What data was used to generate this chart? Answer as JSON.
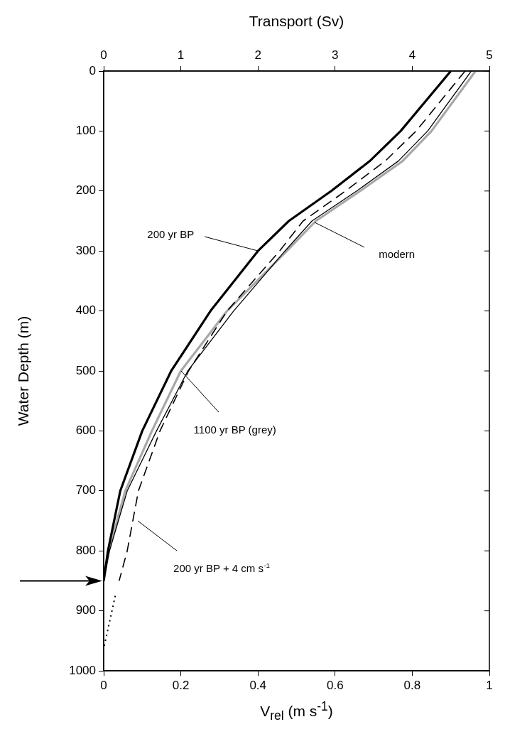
{
  "chart_data": {
    "type": "line",
    "xlabel": "V$_{rel}$ (m s$^{-1}$)",
    "ylabel": "Water Depth (m)",
    "x2label": "Transport (Sv)",
    "xlim": [
      0,
      1
    ],
    "xticks": [
      0,
      0.2,
      0.4,
      0.6,
      0.8,
      1
    ],
    "x2lim": [
      0,
      5
    ],
    "x2ticks": [
      0,
      1,
      2,
      3,
      4,
      5
    ],
    "ylim": [
      1000,
      0
    ],
    "yticks": [
      0,
      100,
      200,
      300,
      400,
      500,
      600,
      700,
      800,
      900,
      1000
    ],
    "grid": false,
    "legend": false,
    "marker": "none",
    "series": [
      {
        "name": "200 yr BP",
        "color": "#000000",
        "line_style": "solid",
        "x": [
          0.9,
          0.77,
          0.69,
          0.59,
          0.48,
          0.4,
          0.277,
          0.175,
          0.1,
          0.043,
          0.011,
          0
        ],
        "values": [
          0,
          100,
          150,
          200,
          250,
          300,
          400,
          500,
          600,
          700,
          800,
          850
        ]
      },
      {
        "name": "modern",
        "color": "#000000",
        "line_style": "solid",
        "x": [
          0.953,
          0.84,
          0.764,
          0.656,
          0.54,
          0.47,
          0.337,
          0.218,
          0.137,
          0.061,
          0.015,
          0
        ],
        "values": [
          0,
          100,
          150,
          200,
          250,
          300,
          400,
          500,
          600,
          700,
          800,
          850
        ]
      },
      {
        "name": "1100 yr BP (grey)",
        "color": "#a8a8a8",
        "line_style": "solid",
        "x": [
          0.964,
          0.85,
          0.775,
          0.665,
          0.55,
          0.475,
          0.32,
          0.2,
          0.125,
          0.056,
          0.013,
          0
        ],
        "values": [
          0,
          100,
          150,
          200,
          250,
          300,
          400,
          500,
          600,
          700,
          800,
          850
        ]
      },
      {
        "name": "200 yr BP + 4 cm s$^{-1}$",
        "color": "#000000",
        "line_style": "dashed",
        "x": [
          0.937,
          0.81,
          0.73,
          0.627,
          0.517,
          0.456,
          0.32,
          0.22,
          0.146,
          0.09,
          0.061,
          0.04
        ],
        "values": [
          0,
          100,
          150,
          200,
          250,
          300,
          400,
          500,
          600,
          700,
          800,
          850
        ]
      },
      {
        "color": "#000000",
        "line_style": "dotted",
        "x": [
          0.03,
          0
        ],
        "values": [
          875,
          963
        ]
      }
    ]
  }
}
